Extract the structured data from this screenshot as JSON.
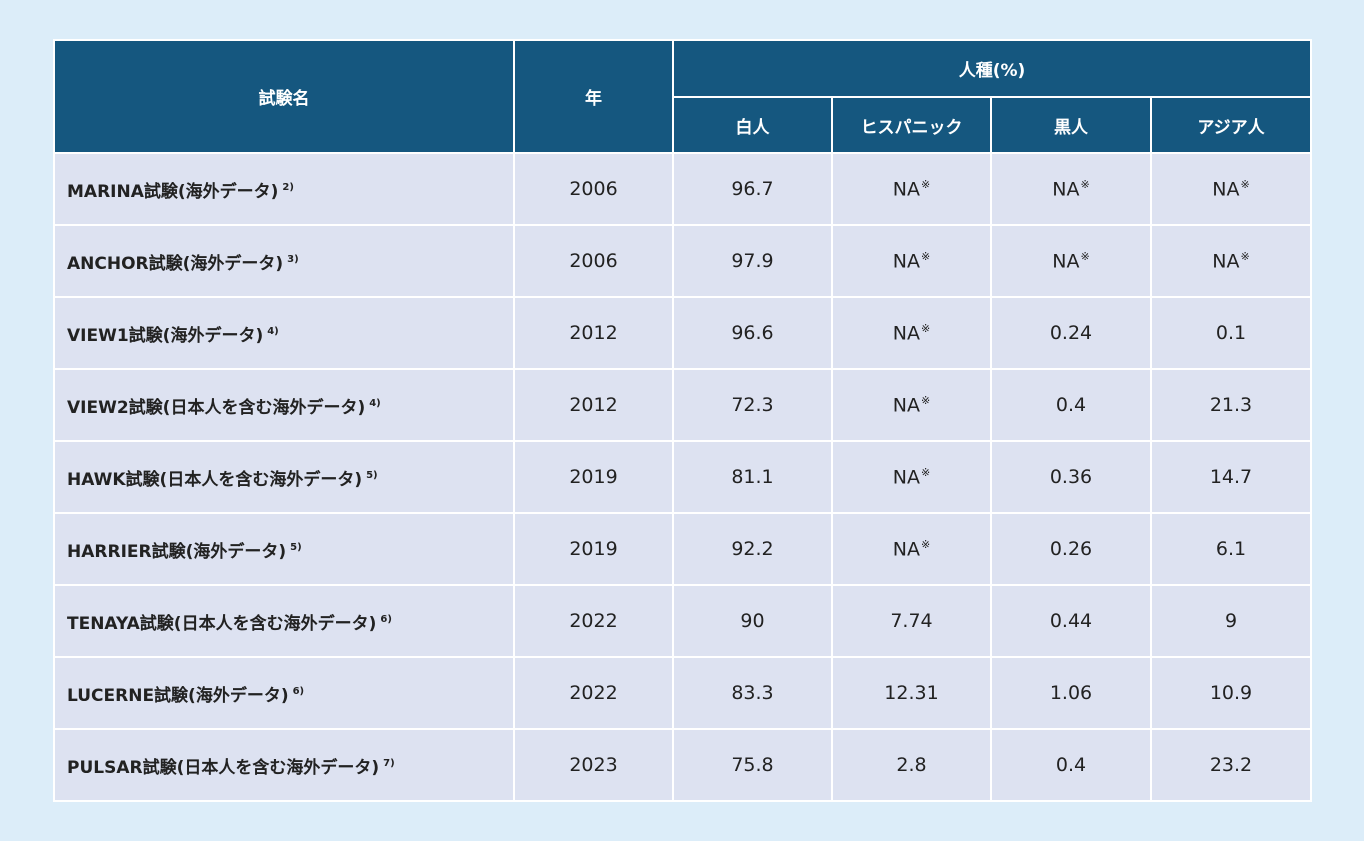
{
  "table": {
    "headers": {
      "trial_name": "試験名",
      "year": "年",
      "race_group": "人種(%)",
      "white": "白人",
      "hispanic": "ヒスパニック",
      "black": "黒人",
      "asian": "アジア人"
    },
    "rows": [
      {
        "name": "MARINA試験(海外データ)",
        "ref": "2)",
        "year": "2006",
        "white": "96.7",
        "hispanic": "NA",
        "hispanic_mark": "※",
        "black": "NA",
        "black_mark": "※",
        "asian": "NA",
        "asian_mark": "※"
      },
      {
        "name": "ANCHOR試験(海外データ)",
        "ref": "3)",
        "year": "2006",
        "white": "97.9",
        "hispanic": "NA",
        "hispanic_mark": "※",
        "black": "NA",
        "black_mark": "※",
        "asian": "NA",
        "asian_mark": "※"
      },
      {
        "name": "VIEW1試験(海外データ)",
        "ref": "4)",
        "year": "2012",
        "white": "96.6",
        "hispanic": "NA",
        "hispanic_mark": "※",
        "black": "0.24",
        "black_mark": "",
        "asian": "0.1",
        "asian_mark": ""
      },
      {
        "name": "VIEW2試験(日本人を含む海外データ)",
        "ref": "4)",
        "year": "2012",
        "white": "72.3",
        "hispanic": "NA",
        "hispanic_mark": "※",
        "black": "0.4",
        "black_mark": "",
        "asian": "21.3",
        "asian_mark": ""
      },
      {
        "name": "HAWK試験(日本人を含む海外データ)",
        "ref": "5)",
        "year": "2019",
        "white": "81.1",
        "hispanic": "NA",
        "hispanic_mark": "※",
        "black": "0.36",
        "black_mark": "",
        "asian": "14.7",
        "asian_mark": ""
      },
      {
        "name": "HARRIER試験(海外データ)",
        "ref": "5)",
        "year": "2019",
        "white": "92.2",
        "hispanic": "NA",
        "hispanic_mark": "※",
        "black": "0.26",
        "black_mark": "",
        "asian": "6.1",
        "asian_mark": ""
      },
      {
        "name": "TENAYA試験(日本人を含む海外データ)",
        "ref": "6)",
        "year": "2022",
        "white": "90",
        "hispanic": "7.74",
        "hispanic_mark": "",
        "black": "0.44",
        "black_mark": "",
        "asian": "9",
        "asian_mark": ""
      },
      {
        "name": "LUCERNE試験(海外データ)",
        "ref": "6)",
        "year": "2022",
        "white": "83.3",
        "hispanic": "12.31",
        "hispanic_mark": "",
        "black": "1.06",
        "black_mark": "",
        "asian": "10.9",
        "asian_mark": ""
      },
      {
        "name": "PULSAR試験(日本人を含む海外データ)",
        "ref": "7)",
        "year": "2023",
        "white": "75.8",
        "hispanic": "2.8",
        "hispanic_mark": "",
        "black": "0.4",
        "black_mark": "",
        "asian": "23.2",
        "asian_mark": ""
      }
    ]
  },
  "colors": {
    "page_background": "#dcedf9",
    "header_background": "#15577f",
    "cell_background": "#dde2f1"
  }
}
